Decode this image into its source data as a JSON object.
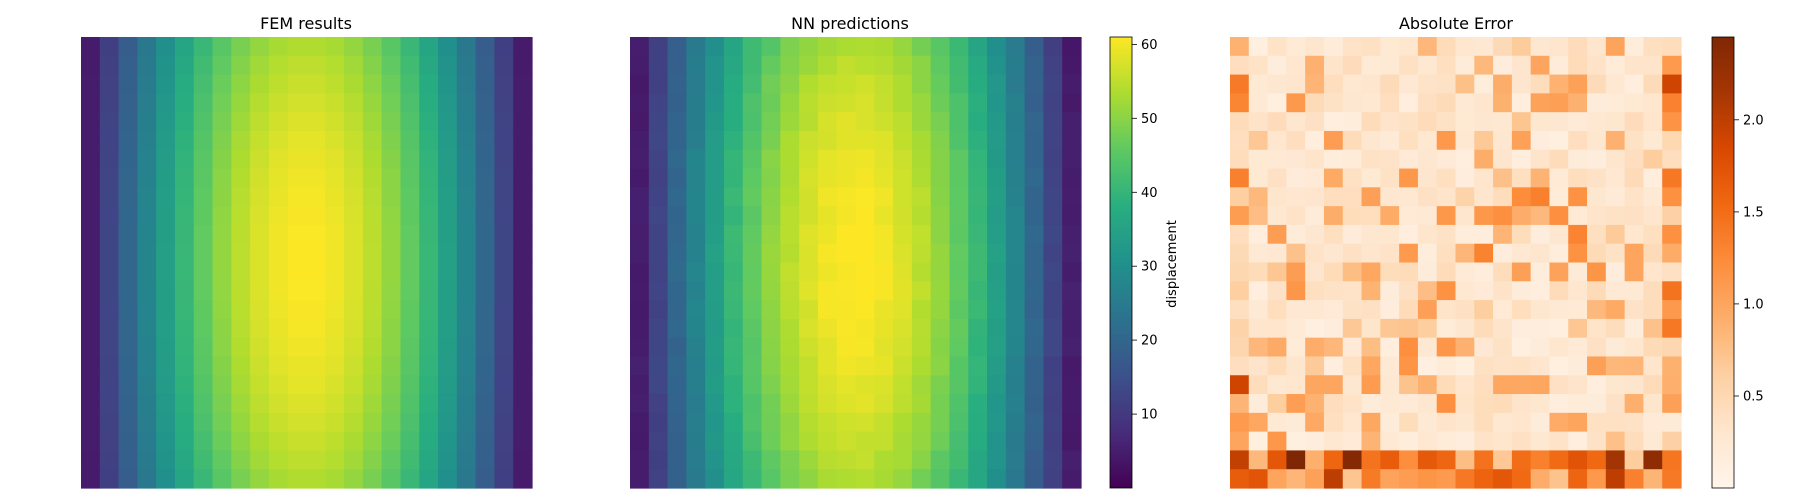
{
  "chart_data": [
    {
      "type": "heatmap",
      "title": "FEM results",
      "grid": [
        24,
        24
      ],
      "colormap": "viridis",
      "clim": [
        0,
        61
      ],
      "axes_visible": false,
      "values": "displacement field: low (~1) at left/right edges, peak (~61) in center columns 11-12, slightly higher mid-height"
    },
    {
      "type": "heatmap",
      "title": "NN predictions",
      "grid": [
        24,
        24
      ],
      "colormap": "viridis",
      "clim": [
        0,
        61
      ],
      "axes_visible": false,
      "colorbar": {
        "label": "displacement",
        "ticks": [
          "10",
          "20",
          "30",
          "40",
          "50",
          "60"
        ],
        "tick_values": [
          10,
          20,
          30,
          40,
          50,
          60
        ]
      }
    },
    {
      "type": "heatmap",
      "title": "Absolute Error",
      "grid": [
        24,
        24
      ],
      "colormap": "oranges",
      "clim": [
        0,
        2.45
      ],
      "axes_visible": false,
      "colorbar": {
        "ticks": [
          "0.5",
          "1.0",
          "1.5",
          "2.0"
        ],
        "tick_values": [
          0.5,
          1.0,
          1.5,
          2.0
        ]
      }
    }
  ]
}
